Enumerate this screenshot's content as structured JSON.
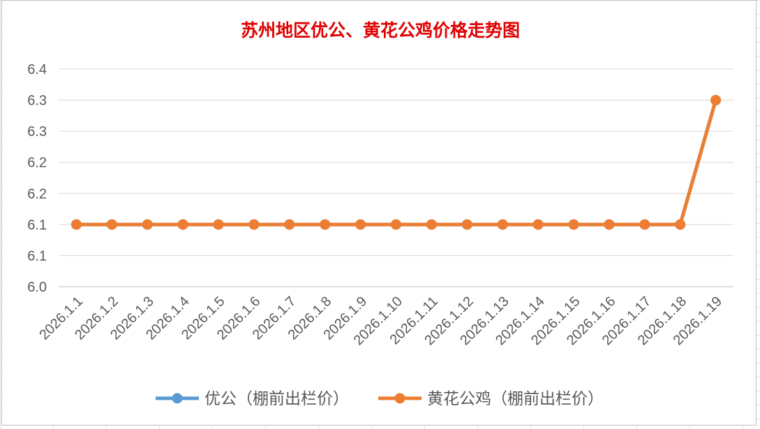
{
  "chart_data": {
    "type": "line",
    "title": "苏州地区优公、黄花公鸡价格走势图",
    "categories": [
      "2026.1.1",
      "2026.1.2",
      "2026.1.3",
      "2026.1.4",
      "2026.1.5",
      "2026.1.6",
      "2026.1.7",
      "2026.1.8",
      "2026.1.9",
      "2026.1.10",
      "2026.1.11",
      "2026.1.12",
      "2026.1.13",
      "2026.1.14",
      "2026.1.15",
      "2026.1.16",
      "2026.1.17",
      "2026.1.18",
      "2026.1.19"
    ],
    "y_ticks": [
      "6.4",
      "6.3",
      "6.3",
      "6.2",
      "6.2",
      "6.1",
      "6.1",
      "6.0"
    ],
    "ylim": [
      6.0,
      6.35
    ],
    "grid": true,
    "legend_position": "bottom",
    "series": [
      {
        "name": "优公（棚前出栏价）",
        "color": "#5b9bd5",
        "values": [
          6.1,
          6.1,
          6.1,
          6.1,
          6.1,
          6.1,
          6.1,
          6.1,
          6.1,
          6.1,
          6.1,
          6.1,
          6.1,
          6.1,
          6.1,
          6.1,
          6.1,
          6.1,
          6.3
        ]
      },
      {
        "name": "黄花公鸡（棚前出栏价）",
        "color": "#ed7d31",
        "values": [
          6.1,
          6.1,
          6.1,
          6.1,
          6.1,
          6.1,
          6.1,
          6.1,
          6.1,
          6.1,
          6.1,
          6.1,
          6.1,
          6.1,
          6.1,
          6.1,
          6.1,
          6.1,
          6.3
        ]
      }
    ],
    "title_color": "#e00000"
  }
}
